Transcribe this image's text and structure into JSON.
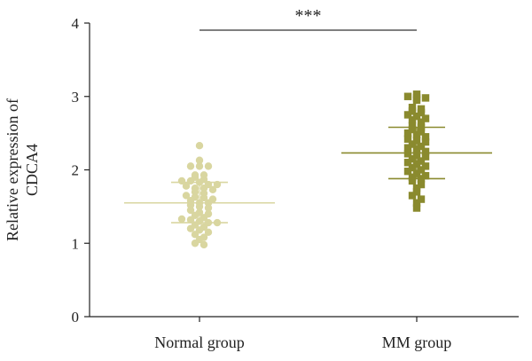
{
  "chart_data": {
    "type": "scatter",
    "title": "",
    "ylabel_line1": "Relative expression of",
    "ylabel_line2": "CDCA4",
    "xlabel": "",
    "ylim": [
      0,
      4
    ],
    "yticks": [
      "0",
      "1",
      "2",
      "3",
      "4"
    ],
    "categories": [
      "Normal group",
      "MM group"
    ],
    "significance": "***",
    "colors": {
      "normal": "#d9d6a0",
      "mm": "#8a8a2e",
      "axis": "#222222",
      "bracket": "#333333"
    },
    "series": [
      {
        "category": "Normal group",
        "marker": "circle",
        "mean": 1.55,
        "sd_upper": 1.83,
        "sd_lower": 1.28,
        "values": [
          2.33,
          2.13,
          2.05,
          2.05,
          2.05,
          1.93,
          1.93,
          1.9,
          1.87,
          1.85,
          1.85,
          1.83,
          1.8,
          1.8,
          1.78,
          1.75,
          1.75,
          1.73,
          1.7,
          1.68,
          1.65,
          1.63,
          1.62,
          1.6,
          1.58,
          1.55,
          1.55,
          1.52,
          1.5,
          1.48,
          1.45,
          1.42,
          1.4,
          1.38,
          1.35,
          1.33,
          1.32,
          1.3,
          1.28,
          1.28,
          1.25,
          1.22,
          1.2,
          1.18,
          1.15,
          1.12,
          1.08,
          1.05,
          1.0,
          0.98
        ]
      },
      {
        "category": "MM group",
        "marker": "square",
        "mean": 2.23,
        "sd_upper": 2.58,
        "sd_lower": 1.88,
        "values": [
          3.03,
          3.0,
          2.98,
          2.98,
          2.95,
          2.85,
          2.83,
          2.8,
          2.78,
          2.75,
          2.73,
          2.7,
          2.68,
          2.65,
          2.6,
          2.58,
          2.55,
          2.52,
          2.5,
          2.48,
          2.45,
          2.42,
          2.4,
          2.38,
          2.35,
          2.32,
          2.3,
          2.28,
          2.25,
          2.22,
          2.2,
          2.18,
          2.15,
          2.12,
          2.1,
          2.08,
          2.05,
          2.03,
          2.0,
          1.98,
          1.95,
          1.92,
          1.9,
          1.88,
          1.85,
          1.8,
          1.75,
          1.7,
          1.65,
          1.6,
          1.55,
          1.48
        ]
      }
    ]
  }
}
